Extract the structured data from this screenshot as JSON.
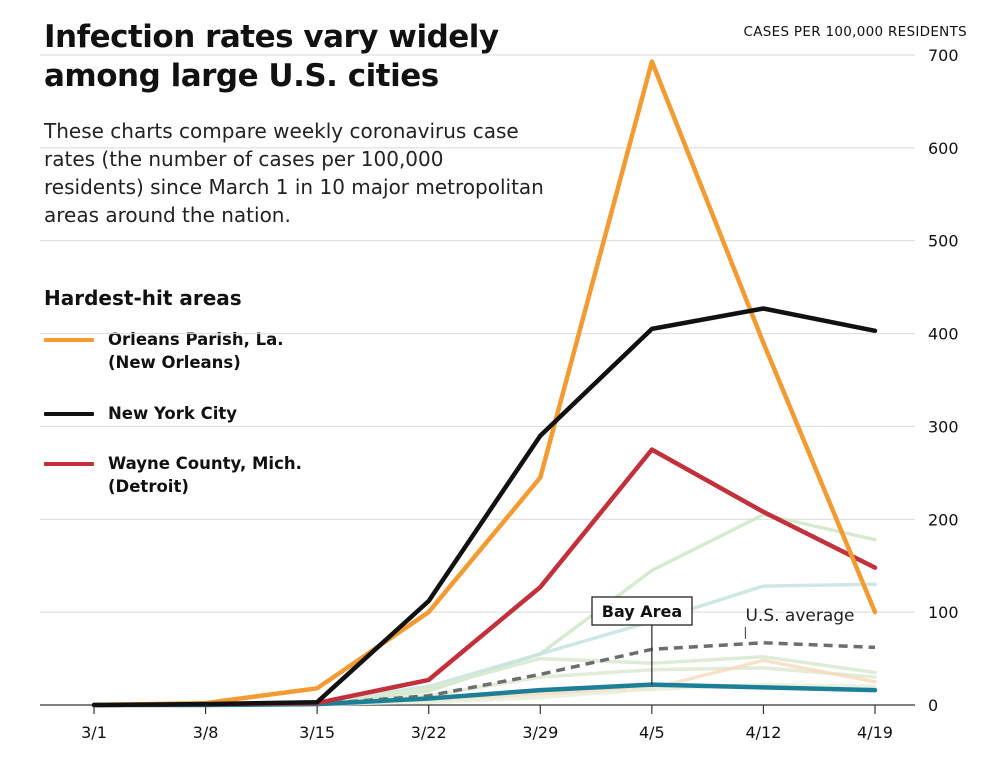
{
  "title": "Infection rates vary widely among large U.S. cities",
  "subtitle": "These charts compare weekly coronavirus case rates (the number of cases per 100,000 residents) since March 1 in 10 major metropolitan areas around the nation.",
  "legend": {
    "title": "Hardest-hit areas",
    "items": [
      {
        "label": "Orleans Parish, La.\n(New Orleans)",
        "color": "#f39b33"
      },
      {
        "label": "New York City",
        "color": "#111111"
      },
      {
        "label": "Wayne County, Mich.\n(Detroit)",
        "color": "#c0313c"
      }
    ]
  },
  "chart_data": {
    "type": "line",
    "ylabel": "CASES PER 100,000 RESIDENTS",
    "x": [
      "3/1",
      "3/8",
      "3/15",
      "3/22",
      "3/29",
      "4/5",
      "4/12",
      "4/19"
    ],
    "ylim": [
      0,
      700
    ],
    "yticks": [
      0,
      100,
      200,
      300,
      400,
      500,
      600,
      700
    ],
    "grid": true,
    "y_axis_side": "right",
    "series": [
      {
        "name": "Orleans Parish, La. (New Orleans)",
        "color": "#f39b33",
        "highlight": true,
        "values": [
          0,
          2,
          18,
          100,
          245,
          693,
          390,
          100
        ]
      },
      {
        "name": "New York City",
        "color": "#111111",
        "highlight": true,
        "values": [
          0,
          1,
          3,
          112,
          290,
          405,
          427,
          403
        ]
      },
      {
        "name": "Wayne County, Mich. (Detroit)",
        "color": "#c0313c",
        "highlight": true,
        "values": [
          0,
          1,
          2,
          27,
          127,
          275,
          208,
          148
        ]
      },
      {
        "name": "Bay Area",
        "color": "#1b7f97",
        "highlight": true,
        "label": "Bay Area",
        "values": [
          0,
          0,
          1,
          7,
          16,
          22,
          19,
          16
        ]
      },
      {
        "name": "U.S. average",
        "color": "#6d6d6d",
        "dashed": true,
        "label": "U.S. average",
        "values": [
          0,
          0,
          1,
          10,
          33,
          60,
          67,
          62
        ]
      },
      {
        "color": "#cfe6c8",
        "faint": true,
        "values": [
          0,
          0,
          2,
          15,
          55,
          145,
          205,
          178
        ]
      },
      {
        "color": "#c7e2e0",
        "faint": true,
        "values": [
          0,
          0,
          3,
          20,
          55,
          90,
          128,
          130
        ]
      },
      {
        "color": "#d7e9cf",
        "faint": true,
        "values": [
          0,
          0,
          2,
          18,
          50,
          45,
          52,
          35
        ]
      },
      {
        "color": "#dde9d2",
        "faint": true,
        "values": [
          0,
          0,
          1,
          10,
          30,
          38,
          40,
          30
        ]
      },
      {
        "color": "#f6dcc0",
        "faint": true,
        "values": [
          0,
          0,
          1,
          5,
          12,
          18,
          48,
          25
        ]
      },
      {
        "color": "#e6efd9",
        "faint": true,
        "values": [
          0,
          0,
          1,
          3,
          8,
          17,
          22,
          20
        ]
      }
    ]
  }
}
